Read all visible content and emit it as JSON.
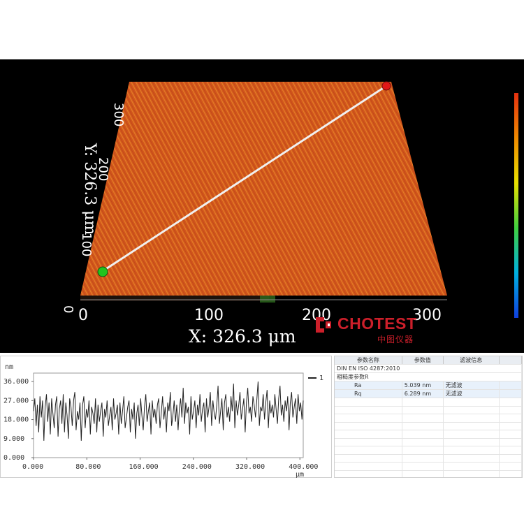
{
  "viewer3d": {
    "x_axis_label": "X: 326.3 μm",
    "y_axis_label": "Y: 326.3 μm",
    "x_ticks": [
      "0",
      "100",
      "200",
      "300"
    ],
    "y_ticks": [
      "0",
      "100",
      "200",
      "300"
    ],
    "surface_color": "#d2561c",
    "start_marker_color": "#22c41e",
    "end_marker_color": "#e01818",
    "colorbar_gradient": [
      "#e63010",
      "#f08a00",
      "#e8e000",
      "#40d040",
      "#00b0e0",
      "#1040e0"
    ]
  },
  "logo": {
    "brand": "CHOTEST",
    "subtitle": "中图仪器",
    "color": "#cc1f2a"
  },
  "profile": {
    "y_unit": "nm",
    "x_unit": "μm",
    "legend": "1",
    "y_ticks": [
      "36.000",
      "27.000",
      "18.000",
      "9.000",
      "0.000"
    ],
    "x_ticks": [
      "0.000",
      "80.000",
      "160.000",
      "240.000",
      "320.000",
      "400.000"
    ],
    "chart_data": {
      "type": "line",
      "x_range": [
        0,
        405
      ],
      "y_range": [
        0,
        40
      ],
      "y_ticks": [
        0,
        9,
        18,
        27,
        36
      ],
      "x_ticks": [
        0,
        80,
        160,
        240,
        320,
        400
      ],
      "series": [
        {
          "values": [
            22,
            28,
            15,
            25,
            12,
            29,
            19,
            27,
            8,
            24,
            30,
            17,
            26,
            11,
            28,
            21,
            14,
            25,
            29,
            10,
            23,
            27,
            16,
            30,
            12,
            26,
            20,
            9,
            28,
            24,
            15,
            27,
            31,
            13,
            22,
            18,
            26,
            8,
            25,
            29,
            14,
            23,
            19,
            27,
            11,
            24,
            21,
            16,
            28,
            12,
            25,
            17,
            22,
            26,
            10,
            23,
            19,
            27,
            15,
            20,
            24,
            13,
            28,
            18,
            21,
            25,
            11,
            26,
            16,
            22,
            29,
            14,
            19,
            24,
            27,
            12,
            23,
            18,
            26,
            9,
            21,
            25,
            15,
            28,
            20,
            13,
            24,
            30,
            17,
            22,
            26,
            11,
            27,
            19,
            23,
            16,
            25,
            28,
            14,
            21,
            29,
            18,
            24,
            12,
            26,
            22,
            31,
            15,
            20,
            27,
            17,
            25,
            13,
            23,
            28,
            19,
            33,
            16,
            26,
            21,
            24,
            11,
            29,
            18,
            22,
            27,
            14,
            25,
            20,
            30,
            17,
            23,
            26,
            12,
            28,
            19,
            24,
            31,
            15,
            27,
            21,
            18,
            25,
            34,
            16,
            22,
            28,
            13,
            26,
            30,
            19,
            24,
            17,
            29,
            22,
            35,
            14,
            27,
            20,
            25,
            31,
            18,
            23,
            28,
            12,
            26,
            33,
            21,
            24,
            17,
            29,
            25,
            19,
            27,
            36,
            15,
            24,
            22,
            30,
            18,
            26,
            32,
            14,
            27,
            21,
            25,
            19,
            30,
            23,
            16,
            28,
            34,
            20,
            25,
            17,
            27,
            22,
            29,
            13,
            26,
            31,
            19,
            24,
            28,
            16,
            30,
            22,
            26,
            18,
            27
          ]
        }
      ]
    }
  },
  "param_table": {
    "headers": [
      "参数名称",
      "参数值",
      "滤波信息",
      ""
    ],
    "standard": "DIN EN ISO 4287:2010",
    "group": "粗糙度参数R",
    "rows": [
      {
        "name": "Ra",
        "value": "5.039 nm",
        "filter": "无滤波"
      },
      {
        "name": "Rq",
        "value": "6.289 nm",
        "filter": "无滤波"
      }
    ]
  }
}
